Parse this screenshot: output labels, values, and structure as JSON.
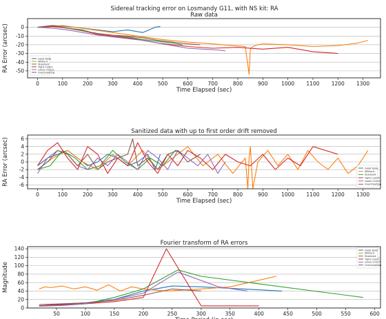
{
  "figure": {
    "suptitle": "Sidereal tracking error on Losmandy G11, with NS kit: RA"
  },
  "colors": {
    "Good Data": "#1f77b4",
    "Without": "#ff7f0e",
    "Standard": "#2ca02c",
    "Tight Clutch": "#d62728",
    "Loose Clutch": "#9467bd",
    "Overshooting": "#8c564b"
  },
  "chart_data": [
    {
      "type": "line",
      "title": "Raw data",
      "xlabel": "Time Elapsed (sec)",
      "ylabel": "RA Error (arcsec)",
      "xlim": [
        -40,
        1370
      ],
      "ylim": [
        -58,
        10
      ],
      "xticks": [
        0,
        100,
        200,
        300,
        400,
        500,
        600,
        700,
        800,
        900,
        1000,
        1100,
        1200,
        1300
      ],
      "yticks": [
        0,
        -10,
        -20,
        -30,
        -40,
        -50
      ],
      "grid": "horizontal",
      "legend": "lower-left",
      "series": [
        {
          "name": "Good Data",
          "x": [
            0,
            60,
            120,
            180,
            240,
            300,
            360,
            420,
            470,
            490
          ],
          "y": [
            0,
            2,
            1,
            -1,
            -3,
            -5,
            -3,
            -6,
            0,
            1
          ]
        },
        {
          "name": "Without",
          "x": [
            0,
            100,
            200,
            300,
            400,
            500,
            600,
            700,
            780,
            830,
            845,
            850,
            860,
            880,
            900,
            1000,
            1100,
            1200,
            1280,
            1320
          ],
          "y": [
            0,
            2,
            -2,
            -6,
            -10,
            -14,
            -17,
            -19,
            -21,
            -22,
            -54,
            -25,
            -22,
            -20,
            -19,
            -20,
            -22,
            -21,
            -18,
            -15
          ]
        },
        {
          "name": "Standard",
          "x": [
            0,
            60,
            120,
            180,
            240,
            300,
            360,
            420,
            480,
            540,
            580
          ],
          "y": [
            0,
            2,
            -1,
            -3,
            -8,
            -10,
            -11,
            -14,
            -16,
            -18,
            -20
          ]
        },
        {
          "name": "Tight Clutch",
          "x": [
            0,
            60,
            120,
            180,
            240,
            300,
            360,
            420,
            480,
            540,
            600,
            700,
            800,
            900,
            1000,
            1100,
            1200
          ],
          "y": [
            0,
            1,
            -1,
            -4,
            -8,
            -10,
            -12,
            -15,
            -18,
            -20,
            -22,
            -24,
            -23,
            -25,
            -23,
            -28,
            -30
          ]
        },
        {
          "name": "Loose Clutch",
          "x": [
            0,
            60,
            120,
            180,
            240,
            300,
            360,
            420,
            480,
            540,
            600,
            660,
            720,
            750
          ],
          "y": [
            0,
            -1,
            -3,
            -6,
            -9,
            -11,
            -13,
            -15,
            -18,
            -21,
            -24,
            -25,
            -26,
            -27
          ]
        },
        {
          "name": "Overshooting",
          "x": [
            0,
            60,
            120,
            180,
            240,
            300,
            360,
            420,
            480,
            540,
            600,
            650
          ],
          "y": [
            0,
            2,
            -1,
            -4,
            -7,
            -9,
            -10,
            -12,
            -15,
            -17,
            -19,
            -20
          ]
        }
      ]
    },
    {
      "type": "line",
      "title": "Sanitized data with up to first order drift removed",
      "xlabel": "Time Elapsed (sec)",
      "ylabel": "RA Error (arcsec)",
      "xlim": [
        -40,
        1370
      ],
      "ylim": [
        -7,
        7
      ],
      "xticks": [
        0,
        100,
        200,
        300,
        400,
        500,
        600,
        700,
        800,
        900,
        1000,
        1100,
        1200,
        1300
      ],
      "yticks": [
        6,
        4,
        2,
        0,
        -2,
        -4,
        -6
      ],
      "grid": "horizontal",
      "legend": "right",
      "series": [
        {
          "name": "Good Data",
          "x": [
            0,
            40,
            80,
            120,
            160,
            200,
            240,
            280,
            320,
            360,
            400,
            440,
            470,
            490
          ],
          "y": [
            -1,
            1,
            2,
            3,
            1,
            -1,
            0,
            2,
            1,
            -1,
            0,
            2,
            -2,
            2
          ]
        },
        {
          "name": "Without",
          "x": [
            0,
            60,
            120,
            180,
            240,
            300,
            360,
            420,
            480,
            540,
            600,
            660,
            720,
            780,
            830,
            840,
            845,
            850,
            860,
            880,
            920,
            960,
            1000,
            1040,
            1080,
            1120,
            1160,
            1200,
            1240,
            1280,
            1310,
            1320
          ],
          "y": [
            -2,
            1,
            3,
            0,
            -2,
            2,
            -1,
            3,
            -2,
            1,
            4,
            -1,
            2,
            -3,
            1,
            -7,
            1,
            4,
            -7,
            0,
            3,
            -1,
            2,
            -2,
            3,
            0,
            -2,
            1,
            -3,
            -1,
            2,
            3
          ]
        },
        {
          "name": "Standard",
          "x": [
            0,
            50,
            100,
            150,
            200,
            250,
            300,
            350,
            400,
            450,
            500,
            550,
            580
          ],
          "y": [
            -2,
            -1,
            3,
            1,
            -2,
            -1,
            3,
            0,
            -2,
            1,
            -1,
            3,
            2
          ]
        },
        {
          "name": "Tight Clutch",
          "x": [
            0,
            40,
            80,
            120,
            160,
            200,
            240,
            280,
            320,
            360,
            400,
            440,
            480,
            520,
            560,
            600,
            650,
            700,
            750,
            800,
            850,
            900,
            950,
            1000,
            1050,
            1100,
            1150,
            1200
          ],
          "y": [
            -1,
            3,
            5,
            1,
            -2,
            4,
            2,
            -3,
            1,
            -1,
            5,
            0,
            -3,
            2,
            -1,
            3,
            1,
            -2,
            2,
            0,
            -1,
            2,
            -2,
            1,
            -1,
            4,
            3,
            2
          ]
        },
        {
          "name": "Loose Clutch",
          "x": [
            0,
            40,
            80,
            120,
            160,
            200,
            240,
            280,
            320,
            360,
            400,
            440,
            480,
            520,
            560,
            600,
            640,
            680,
            720,
            750
          ],
          "y": [
            -3,
            1,
            3,
            2,
            -1,
            -2,
            1,
            -1,
            2,
            0,
            -2,
            3,
            1,
            -2,
            3,
            1,
            -1,
            2,
            -3,
            0
          ]
        },
        {
          "name": "Overshooting",
          "x": [
            0,
            40,
            80,
            120,
            160,
            200,
            240,
            280,
            320,
            360,
            380,
            400,
            440,
            480,
            520,
            560,
            600,
            650
          ],
          "y": [
            -2,
            0,
            3,
            2,
            -1,
            2,
            -2,
            0,
            1,
            2,
            6,
            -1,
            1,
            -2,
            2,
            3,
            0,
            2
          ]
        }
      ]
    },
    {
      "type": "line",
      "title": "Fourier transform of RA errors",
      "xlabel": "Time Period (in sec)",
      "ylabel": "Magnitude",
      "xlim": [
        0,
        610
      ],
      "ylim": [
        0,
        145
      ],
      "xticks": [
        50,
        100,
        150,
        200,
        250,
        300,
        350,
        400,
        450,
        500,
        550,
        600
      ],
      "yticks": [
        0,
        20,
        40,
        60,
        80,
        100,
        120,
        140
      ],
      "grid": "horizontal",
      "legend": "top-right",
      "series": [
        {
          "name": "Good Data",
          "x": [
            20,
            50,
            100,
            150,
            200,
            250,
            300,
            440
          ],
          "y": [
            5,
            8,
            12,
            20,
            40,
            52,
            50,
            40
          ]
        },
        {
          "name": "Without",
          "x": [
            20,
            30,
            40,
            60,
            80,
            100,
            120,
            140,
            160,
            180,
            200,
            240,
            300,
            350,
            430
          ],
          "y": [
            45,
            50,
            48,
            52,
            45,
            50,
            42,
            55,
            40,
            50,
            45,
            40,
            45,
            50,
            75
          ]
        },
        {
          "name": "Standard",
          "x": [
            20,
            50,
            100,
            150,
            200,
            260,
            300,
            580
          ],
          "y": [
            5,
            6,
            10,
            25,
            45,
            90,
            75,
            25
          ]
        },
        {
          "name": "Tight Clutch",
          "x": [
            20,
            60,
            100,
            150,
            200,
            240,
            300,
            400
          ],
          "y": [
            5,
            8,
            10,
            15,
            25,
            140,
            5,
            5
          ]
        },
        {
          "name": "Loose Clutch",
          "x": [
            20,
            60,
            100,
            150,
            200,
            260,
            330,
            380
          ],
          "y": [
            4,
            6,
            10,
            20,
            35,
            85,
            50,
            40
          ]
        },
        {
          "name": "Overshooting",
          "x": [
            20,
            60,
            100,
            150,
            200,
            250,
            300
          ],
          "y": [
            8,
            10,
            12,
            18,
            30,
            45,
            40
          ]
        }
      ]
    }
  ]
}
